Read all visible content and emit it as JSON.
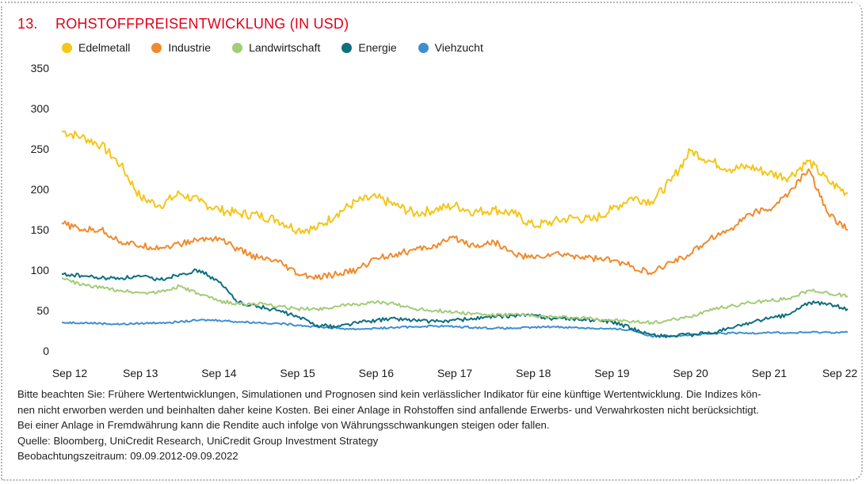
{
  "header": {
    "number": "13.",
    "title": "ROHSTOFFPREISENTWICKLUNG (IN USD)"
  },
  "colors": {
    "title": "#e2001a",
    "Edelmetall": "#f5c518",
    "Industrie": "#f08a2c",
    "Landwirtschaft": "#a3cc78",
    "Energie": "#0f6e80",
    "Viehzucht": "#3e8fd0"
  },
  "chart_data": {
    "type": "line",
    "title": "ROHSTOFFPREISENTWICKLUNG (IN USD)",
    "x_tick_labels": [
      "Sep 12",
      "Sep 13",
      "Sep 14",
      "Sep 15",
      "Sep 16",
      "Sep 17",
      "Sep 18",
      "Sep 19",
      "Sep 20",
      "Sep 21",
      "Sep 22"
    ],
    "y_ticks": [
      0,
      50,
      100,
      150,
      200,
      250,
      300,
      350
    ],
    "ylim": [
      0,
      350
    ],
    "grid": false,
    "legend_position": "top-left",
    "x": [
      2012.69,
      2012.94,
      2013.19,
      2013.44,
      2013.69,
      2013.94,
      2014.19,
      2014.44,
      2014.69,
      2014.94,
      2015.19,
      2015.44,
      2015.69,
      2015.94,
      2016.19,
      2016.44,
      2016.69,
      2016.94,
      2017.19,
      2017.44,
      2017.69,
      2017.94,
      2018.19,
      2018.44,
      2018.69,
      2018.94,
      2019.19,
      2019.44,
      2019.69,
      2019.94,
      2020.19,
      2020.44,
      2020.69,
      2020.94,
      2021.19,
      2021.44,
      2021.69,
      2021.94,
      2022.19,
      2022.44,
      2022.69
    ],
    "series": [
      {
        "name": "Edelmetall",
        "values": [
          272,
          265,
          255,
          230,
          190,
          180,
          195,
          185,
          175,
          170,
          168,
          162,
          150,
          152,
          170,
          185,
          190,
          180,
          170,
          175,
          180,
          172,
          175,
          170,
          155,
          160,
          165,
          162,
          175,
          190,
          185,
          210,
          248,
          235,
          225,
          228,
          220,
          215,
          235,
          210,
          195
        ]
      },
      {
        "name": "Industrie",
        "values": [
          158,
          150,
          150,
          135,
          130,
          128,
          132,
          138,
          140,
          125,
          115,
          110,
          95,
          90,
          95,
          100,
          115,
          120,
          125,
          130,
          140,
          130,
          135,
          120,
          115,
          120,
          118,
          115,
          112,
          105,
          95,
          110,
          120,
          140,
          150,
          170,
          175,
          195,
          225,
          170,
          150
        ]
      },
      {
        "name": "Landwirtschaft",
        "values": [
          90,
          82,
          78,
          75,
          72,
          73,
          80,
          70,
          62,
          58,
          58,
          55,
          52,
          52,
          55,
          58,
          60,
          58,
          52,
          50,
          48,
          46,
          44,
          45,
          43,
          42,
          41,
          40,
          38,
          36,
          35,
          38,
          42,
          52,
          55,
          60,
          62,
          65,
          75,
          72,
          68
        ]
      },
      {
        "name": "Energie",
        "values": [
          95,
          93,
          90,
          90,
          92,
          88,
          95,
          100,
          85,
          60,
          55,
          50,
          42,
          32,
          30,
          35,
          38,
          40,
          38,
          36,
          38,
          40,
          42,
          44,
          44,
          40,
          40,
          38,
          36,
          28,
          20,
          18,
          20,
          22,
          28,
          35,
          40,
          45,
          60,
          58,
          52
        ]
      },
      {
        "name": "Viehzucht",
        "values": [
          35,
          35,
          34,
          33,
          34,
          35,
          36,
          38,
          38,
          36,
          35,
          34,
          32,
          30,
          28,
          27,
          28,
          29,
          30,
          31,
          30,
          29,
          28,
          28,
          29,
          30,
          29,
          28,
          27,
          26,
          18,
          19,
          20,
          21,
          22,
          22,
          23,
          22,
          23,
          23,
          23
        ]
      }
    ]
  },
  "notes": [
    "Bitte beachten Sie: Frühere Wertentwicklungen, Simulationen und Prognosen sind kein verlässlicher Indikator für eine künftige Wertentwicklung. Die Indizes kön-",
    "nen nicht erworben werden und beinhalten daher keine Kosten. Bei einer Anlage in Rohstoffen sind anfallende Erwerbs- und Verwahrkosten nicht berücksichtigt.",
    "Bei einer Anlage in Fremdwährung kann die Rendite auch infolge von Währungsschwankungen steigen oder fallen.",
    "Quelle: Bloomberg, UniCredit Research, UniCredit Group Investment Strategy",
    "Beobachtungszeitraum: 09.09.2012-09.09.2022"
  ]
}
